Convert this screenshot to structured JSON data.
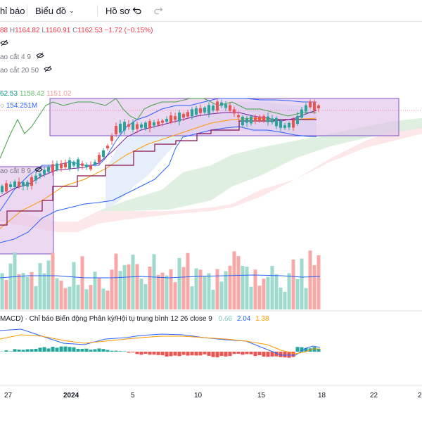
{
  "toolbar": {
    "indicators_label": "hỉ báo",
    "chart_menu_label": "Biểu đồ",
    "profile_menu_label": "Hồ sơ"
  },
  "ohlc": {
    "open_fragment": "88",
    "high_label": "H",
    "high_value": "1164.82",
    "low_label": "L",
    "low_value": "1160.91",
    "close_label": "C",
    "close_value": "1162.53",
    "change": "−1.72 (−0.15%)"
  },
  "legend": {
    "line1": "ao cắt 4 9",
    "line2": "ao cắt 20 50",
    "price_tags": [
      "62.53",
      "1158.42",
      "1151.02"
    ],
    "volume_tag": "154.251M",
    "ma_overlay_label": "ao cắt 8 9"
  },
  "macd_legend": {
    "label": "MACD) · Chỉ báo Biến động Phân kỳ/Hội tụ trung bình 12 26 close 9",
    "v1": "0.66",
    "v2": "2.04",
    "v3": "1.38"
  },
  "x_axis": {
    "ticks": [
      "27",
      "2024",
      "5",
      "10",
      "15",
      "18",
      "22",
      "2"
    ]
  },
  "colors": {
    "up": "#26a69a",
    "down": "#ef5350",
    "box_fill": "#e1bee7",
    "box_stroke": "#7e57c2",
    "cloud_green": "#d7ecd9",
    "cloud_red": "#f8d7d7",
    "line_blue": "#2962ff",
    "line_orange": "#ff9800",
    "line_dark": "#880e4f"
  },
  "chart_data": {
    "type": "candlestick",
    "x_tick_labels": [
      "27",
      "2024",
      "5",
      "10",
      "15",
      "18",
      "22",
      "2"
    ],
    "last_price": {
      "open": "88",
      "high": 1164.82,
      "low": 1160.91,
      "close": 1162.53,
      "change": -1.72,
      "change_pct": -0.15
    },
    "macd_values": [
      0.66,
      2.04,
      1.38
    ]
  }
}
